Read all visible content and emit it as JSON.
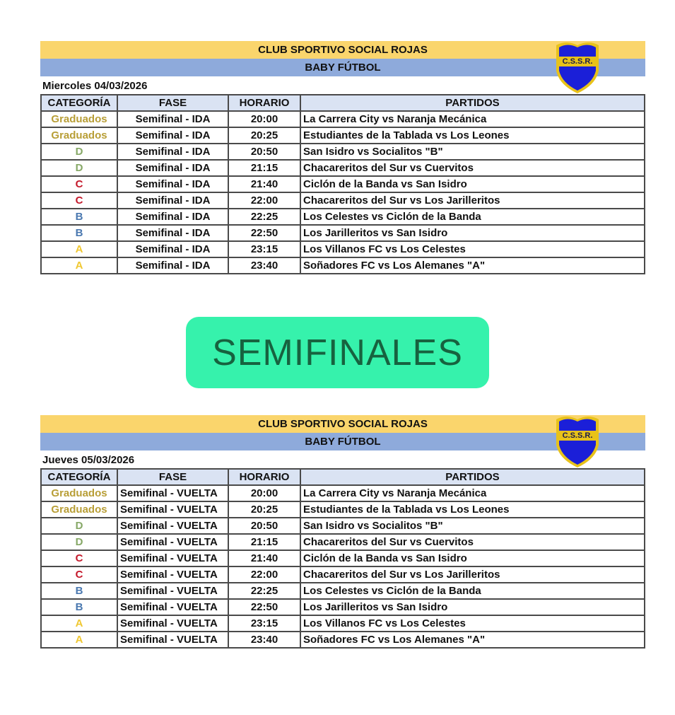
{
  "colors": {
    "yellow_band": "#fad56c",
    "blue_band": "#8eaadb",
    "header_bg": "#dae3f3",
    "banner_bg": "#36f2ac",
    "banner_text": "#17623f",
    "category_colors": {
      "Graduados": "#b89e36",
      "D": "#86a866",
      "C": "#c4182a",
      "B": "#4a78b0",
      "A": "#f0c832"
    }
  },
  "banner": {
    "text": "SEMIFINALES"
  },
  "schedules": [
    {
      "club": "CLUB SPORTIVO SOCIAL ROJAS",
      "league": "BABY FÚTBOL",
      "logo_text": "C.S.S.R.",
      "date": "Miercoles 04/03/2026",
      "columns": [
        "CATEGORÍA",
        "FASE",
        "HORARIO",
        "PARTIDOS"
      ],
      "rows": [
        {
          "categoria": "Graduados",
          "fase": "Semifinal - IDA",
          "horario": "20:00",
          "partido": "La Carrera City vs Naranja Mecánica"
        },
        {
          "categoria": "Graduados",
          "fase": "Semifinal - IDA",
          "horario": "20:25",
          "partido": "Estudiantes de la Tablada vs Los Leones"
        },
        {
          "categoria": "D",
          "fase": "Semifinal - IDA",
          "horario": "20:50",
          "partido": "San Isidro vs Socialitos \"B\""
        },
        {
          "categoria": "D",
          "fase": "Semifinal - IDA",
          "horario": "21:15",
          "partido": "Chacareritos del Sur vs Cuervitos"
        },
        {
          "categoria": "C",
          "fase": "Semifinal - IDA",
          "horario": "21:40",
          "partido": "Ciclón de la Banda vs San Isidro"
        },
        {
          "categoria": "C",
          "fase": "Semifinal - IDA",
          "horario": "22:00",
          "partido": "Chacareritos del Sur vs Los Jarilleritos"
        },
        {
          "categoria": "B",
          "fase": "Semifinal - IDA",
          "horario": "22:25",
          "partido": "Los Celestes vs Ciclón de la Banda"
        },
        {
          "categoria": "B",
          "fase": "Semifinal - IDA",
          "horario": "22:50",
          "partido": "Los Jarilleritos vs San Isidro"
        },
        {
          "categoria": "A",
          "fase": "Semifinal - IDA",
          "horario": "23:15",
          "partido": "Los Villanos FC vs Los Celestes"
        },
        {
          "categoria": "A",
          "fase": "Semifinal - IDA",
          "horario": "23:40",
          "partido": "Soñadores FC vs Los Alemanes \"A\""
        }
      ]
    },
    {
      "club": "CLUB SPORTIVO SOCIAL ROJAS",
      "league": "BABY FÚTBOL",
      "logo_text": "C.S.S.R.",
      "date": "Jueves 05/03/2026",
      "columns": [
        "CATEGORÍA",
        "FASE",
        "HORARIO",
        "PARTIDOS"
      ],
      "rows": [
        {
          "categoria": "Graduados",
          "fase": "Semifinal - VUELTA",
          "horario": "20:00",
          "partido": "La Carrera City vs Naranja Mecánica"
        },
        {
          "categoria": "Graduados",
          "fase": "Semifinal - VUELTA",
          "horario": "20:25",
          "partido": "Estudiantes de la Tablada vs Los Leones"
        },
        {
          "categoria": "D",
          "fase": "Semifinal - VUELTA",
          "horario": "20:50",
          "partido": "San Isidro vs Socialitos \"B\""
        },
        {
          "categoria": "D",
          "fase": "Semifinal - VUELTA",
          "horario": "21:15",
          "partido": "Chacareritos del Sur vs Cuervitos"
        },
        {
          "categoria": "C",
          "fase": "Semifinal - VUELTA",
          "horario": "21:40",
          "partido": "Ciclón de la Banda vs San Isidro"
        },
        {
          "categoria": "C",
          "fase": "Semifinal - VUELTA",
          "horario": "22:00",
          "partido": "Chacareritos del Sur vs Los Jarilleritos"
        },
        {
          "categoria": "B",
          "fase": "Semifinal - VUELTA",
          "horario": "22:25",
          "partido": "Los Celestes vs Ciclón de la Banda"
        },
        {
          "categoria": "B",
          "fase": "Semifinal - VUELTA",
          "horario": "22:50",
          "partido": "Los Jarilleritos vs San Isidro"
        },
        {
          "categoria": "A",
          "fase": "Semifinal - VUELTA",
          "horario": "23:15",
          "partido": "Los Villanos FC vs Los Celestes"
        },
        {
          "categoria": "A",
          "fase": "Semifinal - VUELTA",
          "horario": "23:40",
          "partido": "Soñadores FC vs Los Alemanes \"A\""
        }
      ]
    }
  ]
}
